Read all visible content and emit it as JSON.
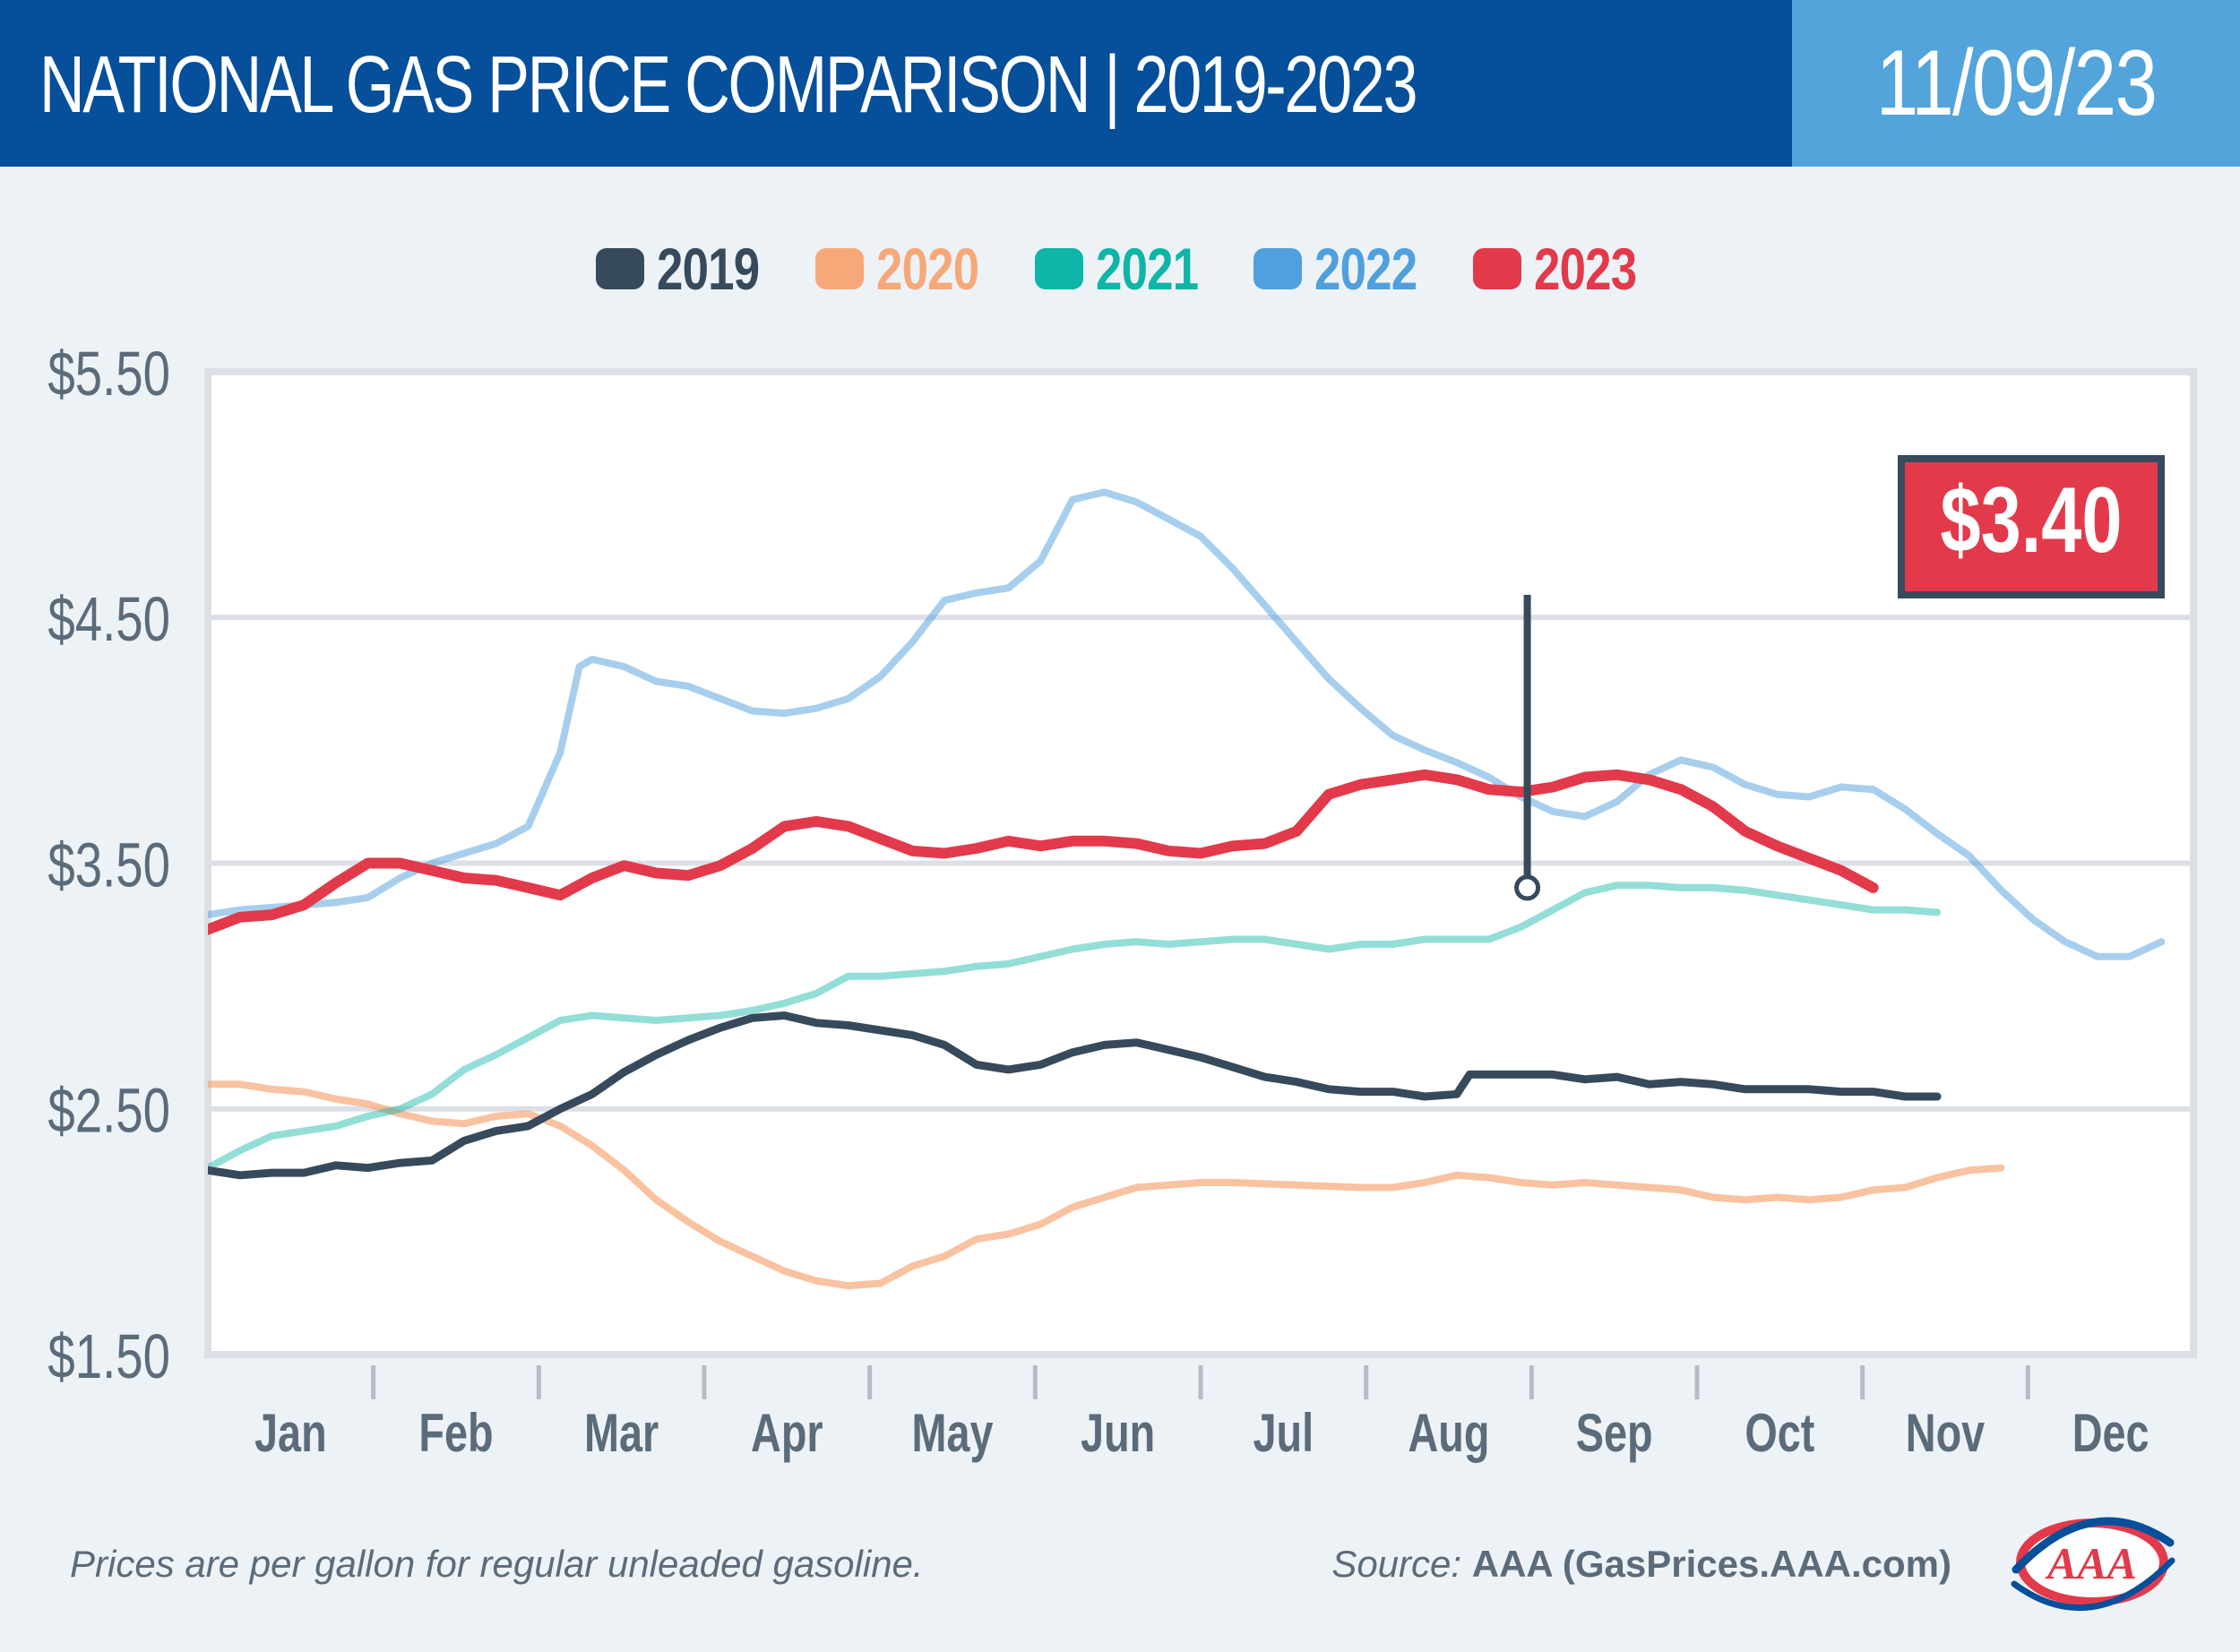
{
  "header": {
    "title_main": "NATIONAL GAS PRICE COMPARISON",
    "title_sep": "|",
    "title_years": "2019-2023",
    "date": "11/09/23"
  },
  "footer": {
    "note": "Prices are per gallon for regular unleaded gasoline.",
    "source_label": "Source:",
    "source_value": "AAA (GasPrices.AAA.com)",
    "logo_text": "AAA"
  },
  "colors": {
    "header_bg": "#054f9b",
    "date_bg": "#52a4db",
    "2019": "#374a5c",
    "2020": "#f6a878",
    "2021": "#0fb5a6",
    "2022": "#4fa0dc",
    "2023": "#e23a4b"
  },
  "chart_data": {
    "type": "line",
    "title": "",
    "xlabel": "",
    "ylabel": "",
    "ylim": [
      1.5,
      5.5
    ],
    "y_ticks": [
      "$1.50",
      "$2.50",
      "$3.50",
      "$4.50",
      "$5.50"
    ],
    "y_tick_values": [
      1.5,
      2.5,
      3.5,
      4.5,
      5.5
    ],
    "categories": [
      "Jan",
      "Feb",
      "Mar",
      "Apr",
      "May",
      "Jun",
      "Jul",
      "Aug",
      "Sep",
      "Oct",
      "Nov",
      "Dec"
    ],
    "x_unit": "month index (0 = Jan 1, 12 = Dec 31)",
    "legend": "top-center",
    "grid": "horizontal",
    "callout": {
      "label": "$3.40",
      "x": 10.3,
      "y": 3.4,
      "series": "2023"
    },
    "series": [
      {
        "name": "2019",
        "points": [
          [
            0,
            2.25
          ],
          [
            0.25,
            2.23
          ],
          [
            0.5,
            2.24
          ],
          [
            0.75,
            2.24
          ],
          [
            1,
            2.27
          ],
          [
            1.25,
            2.26
          ],
          [
            1.5,
            2.28
          ],
          [
            1.75,
            2.29
          ],
          [
            2,
            2.37
          ],
          [
            2.25,
            2.41
          ],
          [
            2.5,
            2.43
          ],
          [
            2.75,
            2.5
          ],
          [
            3,
            2.56
          ],
          [
            3.25,
            2.65
          ],
          [
            3.5,
            2.72
          ],
          [
            3.75,
            2.78
          ],
          [
            4,
            2.83
          ],
          [
            4.25,
            2.87
          ],
          [
            4.5,
            2.88
          ],
          [
            4.75,
            2.85
          ],
          [
            5,
            2.84
          ],
          [
            5.25,
            2.82
          ],
          [
            5.5,
            2.8
          ],
          [
            5.75,
            2.76
          ],
          [
            6,
            2.68
          ],
          [
            6.25,
            2.66
          ],
          [
            6.5,
            2.68
          ],
          [
            6.75,
            2.73
          ],
          [
            7,
            2.76
          ],
          [
            7.25,
            2.77
          ],
          [
            7.5,
            2.74
          ],
          [
            7.75,
            2.71
          ],
          [
            8,
            2.67
          ],
          [
            8.25,
            2.63
          ],
          [
            8.5,
            2.61
          ],
          [
            8.75,
            2.58
          ],
          [
            9,
            2.57
          ],
          [
            9.25,
            2.57
          ],
          [
            9.5,
            2.55
          ],
          [
            9.75,
            2.56
          ],
          [
            9.85,
            2.64
          ],
          [
            10,
            2.64
          ],
          [
            10.5,
            2.64
          ],
          [
            10.75,
            2.62
          ],
          [
            11,
            2.63
          ],
          [
            11.25,
            2.6
          ],
          [
            11.5,
            2.61
          ],
          [
            11.75,
            2.6
          ],
          [
            12,
            2.58
          ],
          [
            12.5,
            2.58
          ],
          [
            12.75,
            2.57
          ],
          [
            13,
            2.57
          ],
          [
            13.25,
            2.55
          ],
          [
            13.5,
            2.55
          ]
        ]
      },
      {
        "name": "2020",
        "points": [
          [
            0,
            2.6
          ],
          [
            0.25,
            2.6
          ],
          [
            0.5,
            2.58
          ],
          [
            0.75,
            2.57
          ],
          [
            1,
            2.54
          ],
          [
            1.25,
            2.52
          ],
          [
            1.5,
            2.48
          ],
          [
            1.75,
            2.45
          ],
          [
            2,
            2.44
          ],
          [
            2.25,
            2.47
          ],
          [
            2.5,
            2.48
          ],
          [
            2.75,
            2.43
          ],
          [
            3,
            2.35
          ],
          [
            3.25,
            2.25
          ],
          [
            3.5,
            2.13
          ],
          [
            3.75,
            2.04
          ],
          [
            4,
            1.96
          ],
          [
            4.25,
            1.9
          ],
          [
            4.5,
            1.84
          ],
          [
            4.75,
            1.8
          ],
          [
            5,
            1.78
          ],
          [
            5.25,
            1.79
          ],
          [
            5.5,
            1.86
          ],
          [
            5.75,
            1.9
          ],
          [
            6,
            1.97
          ],
          [
            6.25,
            1.99
          ],
          [
            6.5,
            2.03
          ],
          [
            6.75,
            2.1
          ],
          [
            7,
            2.14
          ],
          [
            7.25,
            2.18
          ],
          [
            7.5,
            2.19
          ],
          [
            7.75,
            2.2
          ],
          [
            8,
            2.2
          ],
          [
            8.5,
            2.19
          ],
          [
            9,
            2.18
          ],
          [
            9.25,
            2.18
          ],
          [
            9.5,
            2.2
          ],
          [
            9.75,
            2.23
          ],
          [
            10,
            2.22
          ],
          [
            10.25,
            2.2
          ],
          [
            10.5,
            2.19
          ],
          [
            10.75,
            2.2
          ],
          [
            11,
            2.19
          ],
          [
            11.25,
            2.18
          ],
          [
            11.5,
            2.17
          ],
          [
            11.75,
            2.14
          ],
          [
            12,
            2.13
          ],
          [
            12.25,
            2.14
          ],
          [
            12.5,
            2.13
          ],
          [
            12.75,
            2.14
          ],
          [
            13,
            2.17
          ],
          [
            13.25,
            2.18
          ],
          [
            13.5,
            2.22
          ],
          [
            13.75,
            2.25
          ],
          [
            14,
            2.26
          ]
        ]
      },
      {
        "name": "2021",
        "points": [
          [
            0,
            2.26
          ],
          [
            0.25,
            2.33
          ],
          [
            0.5,
            2.39
          ],
          [
            0.75,
            2.41
          ],
          [
            1,
            2.43
          ],
          [
            1.25,
            2.47
          ],
          [
            1.5,
            2.5
          ],
          [
            1.75,
            2.56
          ],
          [
            2,
            2.66
          ],
          [
            2.25,
            2.72
          ],
          [
            2.5,
            2.79
          ],
          [
            2.75,
            2.86
          ],
          [
            3,
            2.88
          ],
          [
            3.25,
            2.87
          ],
          [
            3.5,
            2.86
          ],
          [
            3.75,
            2.87
          ],
          [
            4,
            2.88
          ],
          [
            4.25,
            2.9
          ],
          [
            4.5,
            2.93
          ],
          [
            4.75,
            2.97
          ],
          [
            5,
            3.04
          ],
          [
            5.25,
            3.04
          ],
          [
            5.5,
            3.05
          ],
          [
            5.75,
            3.06
          ],
          [
            6,
            3.08
          ],
          [
            6.25,
            3.09
          ],
          [
            6.5,
            3.12
          ],
          [
            6.75,
            3.15
          ],
          [
            7,
            3.17
          ],
          [
            7.25,
            3.18
          ],
          [
            7.5,
            3.17
          ],
          [
            7.75,
            3.18
          ],
          [
            8,
            3.19
          ],
          [
            8.25,
            3.19
          ],
          [
            8.5,
            3.17
          ],
          [
            8.75,
            3.15
          ],
          [
            9,
            3.17
          ],
          [
            9.25,
            3.17
          ],
          [
            9.5,
            3.19
          ],
          [
            9.75,
            3.19
          ],
          [
            10,
            3.19
          ],
          [
            10.25,
            3.24
          ],
          [
            10.5,
            3.31
          ],
          [
            10.75,
            3.38
          ],
          [
            11,
            3.41
          ],
          [
            11.25,
            3.41
          ],
          [
            11.5,
            3.4
          ],
          [
            11.75,
            3.4
          ],
          [
            12,
            3.39
          ],
          [
            12.25,
            3.37
          ],
          [
            12.5,
            3.35
          ],
          [
            12.75,
            3.33
          ],
          [
            13,
            3.31
          ],
          [
            13.25,
            3.31
          ],
          [
            13.5,
            3.3
          ]
        ]
      },
      {
        "name": "2022",
        "points": [
          [
            0,
            3.29
          ],
          [
            0.25,
            3.31
          ],
          [
            0.5,
            3.32
          ],
          [
            0.75,
            3.33
          ],
          [
            1,
            3.34
          ],
          [
            1.25,
            3.36
          ],
          [
            1.5,
            3.44
          ],
          [
            1.75,
            3.5
          ],
          [
            2,
            3.54
          ],
          [
            2.25,
            3.58
          ],
          [
            2.5,
            3.65
          ],
          [
            2.75,
            3.95
          ],
          [
            2.9,
            4.3
          ],
          [
            3.0,
            4.33
          ],
          [
            3.25,
            4.3
          ],
          [
            3.5,
            4.24
          ],
          [
            3.75,
            4.22
          ],
          [
            4,
            4.17
          ],
          [
            4.25,
            4.12
          ],
          [
            4.5,
            4.11
          ],
          [
            4.75,
            4.13
          ],
          [
            5,
            4.17
          ],
          [
            5.25,
            4.26
          ],
          [
            5.5,
            4.4
          ],
          [
            5.75,
            4.57
          ],
          [
            6,
            4.6
          ],
          [
            6.25,
            4.62
          ],
          [
            6.5,
            4.73
          ],
          [
            6.75,
            4.98
          ],
          [
            7,
            5.01
          ],
          [
            7.25,
            4.97
          ],
          [
            7.5,
            4.9
          ],
          [
            7.75,
            4.83
          ],
          [
            8,
            4.7
          ],
          [
            8.25,
            4.55
          ],
          [
            8.5,
            4.4
          ],
          [
            8.75,
            4.25
          ],
          [
            9,
            4.13
          ],
          [
            9.25,
            4.02
          ],
          [
            9.5,
            3.96
          ],
          [
            9.75,
            3.91
          ],
          [
            10,
            3.85
          ],
          [
            10.25,
            3.77
          ],
          [
            10.5,
            3.71
          ],
          [
            10.75,
            3.69
          ],
          [
            11,
            3.75
          ],
          [
            11.25,
            3.86
          ],
          [
            11.5,
            3.92
          ],
          [
            11.75,
            3.89
          ],
          [
            12,
            3.82
          ],
          [
            12.25,
            3.78
          ],
          [
            12.5,
            3.77
          ],
          [
            12.75,
            3.81
          ],
          [
            13,
            3.8
          ],
          [
            13.25,
            3.72
          ],
          [
            13.5,
            3.62
          ],
          [
            13.75,
            3.53
          ],
          [
            14,
            3.39
          ],
          [
            14.25,
            3.27
          ],
          [
            14.5,
            3.18
          ],
          [
            14.75,
            3.12
          ],
          [
            15,
            3.12
          ],
          [
            15.25,
            3.18
          ]
        ]
      },
      {
        "name": "2023",
        "points": [
          [
            0,
            3.23
          ],
          [
            0.25,
            3.28
          ],
          [
            0.5,
            3.29
          ],
          [
            0.75,
            3.33
          ],
          [
            1,
            3.42
          ],
          [
            1.25,
            3.5
          ],
          [
            1.5,
            3.5
          ],
          [
            1.75,
            3.47
          ],
          [
            2,
            3.44
          ],
          [
            2.25,
            3.43
          ],
          [
            2.5,
            3.4
          ],
          [
            2.75,
            3.37
          ],
          [
            3,
            3.44
          ],
          [
            3.25,
            3.49
          ],
          [
            3.5,
            3.46
          ],
          [
            3.75,
            3.45
          ],
          [
            4,
            3.49
          ],
          [
            4.25,
            3.56
          ],
          [
            4.5,
            3.65
          ],
          [
            4.75,
            3.67
          ],
          [
            5,
            3.65
          ],
          [
            5.25,
            3.6
          ],
          [
            5.5,
            3.55
          ],
          [
            5.75,
            3.54
          ],
          [
            6,
            3.56
          ],
          [
            6.25,
            3.59
          ],
          [
            6.5,
            3.57
          ],
          [
            6.75,
            3.59
          ],
          [
            7,
            3.59
          ],
          [
            7.25,
            3.58
          ],
          [
            7.5,
            3.55
          ],
          [
            7.75,
            3.54
          ],
          [
            8,
            3.57
          ],
          [
            8.25,
            3.58
          ],
          [
            8.5,
            3.63
          ],
          [
            8.75,
            3.78
          ],
          [
            9,
            3.82
          ],
          [
            9.25,
            3.84
          ],
          [
            9.5,
            3.86
          ],
          [
            9.75,
            3.84
          ],
          [
            10,
            3.8
          ],
          [
            10.25,
            3.79
          ],
          [
            10.5,
            3.81
          ],
          [
            10.75,
            3.85
          ],
          [
            11,
            3.86
          ],
          [
            11.25,
            3.84
          ],
          [
            11.5,
            3.8
          ],
          [
            11.75,
            3.73
          ],
          [
            12,
            3.63
          ],
          [
            12.25,
            3.57
          ],
          [
            12.5,
            3.52
          ],
          [
            12.75,
            3.47
          ],
          [
            13,
            3.4
          ]
        ]
      }
    ]
  }
}
